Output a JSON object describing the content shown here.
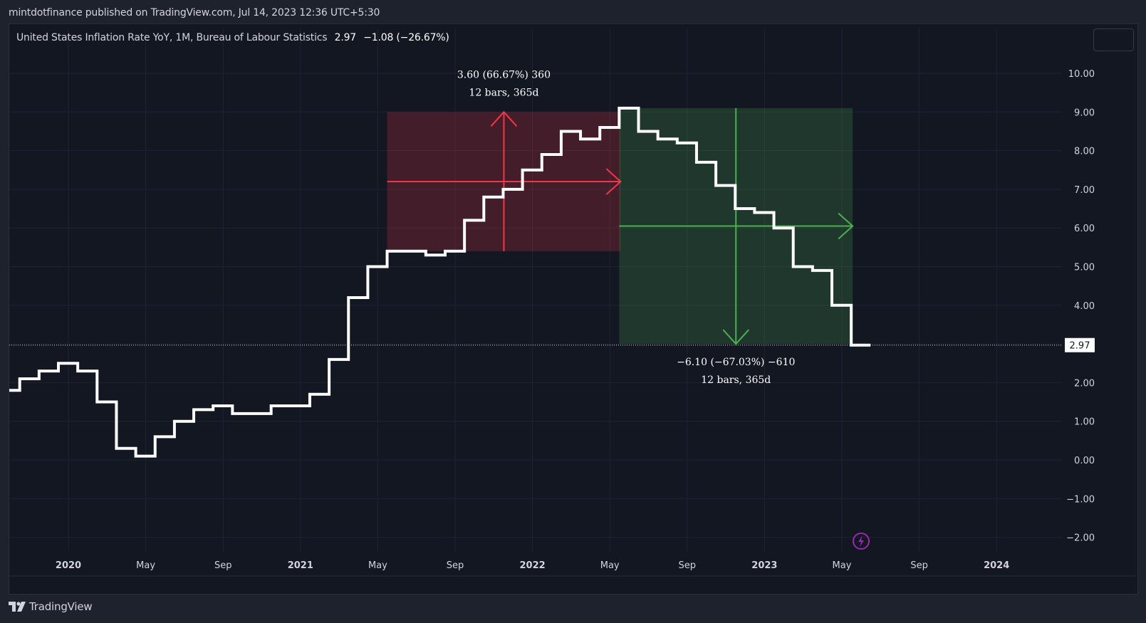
{
  "header": {
    "published_text": "mintdotfinance published on TradingView.com, Jul 14, 2023 12:36 UTC+5:30"
  },
  "legend": {
    "series_name": "United States Inflation Rate YoY, 1M, Bureau of Labour Statistics",
    "last_value": "2.97",
    "change": "−1.08 (−26.67%)"
  },
  "footer": {
    "brand": "TradingView"
  },
  "colors": {
    "background": "#131722",
    "line": "#ffffff",
    "up_measure": "#f23645",
    "down_measure": "#4caf50",
    "snapshot_icon": "#9c27b0"
  },
  "chart_data": {
    "type": "line",
    "step": true,
    "title": "United States Inflation Rate YoY, 1M, Bureau of Labour Statistics",
    "x": [
      "2019-11",
      "2019-12",
      "2020-01",
      "2020-02",
      "2020-03",
      "2020-04",
      "2020-05",
      "2020-06",
      "2020-07",
      "2020-08",
      "2020-09",
      "2020-10",
      "2020-11",
      "2020-12",
      "2021-01",
      "2021-02",
      "2021-03",
      "2021-04",
      "2021-05",
      "2021-06",
      "2021-07",
      "2021-08",
      "2021-09",
      "2021-10",
      "2021-11",
      "2021-12",
      "2022-01",
      "2022-02",
      "2022-03",
      "2022-04",
      "2022-05",
      "2022-06",
      "2022-07",
      "2022-08",
      "2022-09",
      "2022-10",
      "2022-11",
      "2022-12",
      "2023-01",
      "2023-02",
      "2023-03",
      "2023-04",
      "2023-05",
      "2023-06"
    ],
    "values": [
      2.1,
      2.3,
      2.5,
      2.3,
      1.5,
      0.3,
      0.1,
      0.6,
      1.0,
      1.3,
      1.4,
      1.2,
      1.2,
      1.4,
      1.4,
      1.7,
      2.6,
      4.2,
      5.0,
      5.4,
      5.4,
      5.3,
      5.4,
      6.2,
      6.8,
      7.0,
      7.5,
      7.9,
      8.5,
      8.3,
      8.6,
      9.1,
      8.5,
      8.3,
      8.2,
      7.7,
      7.1,
      6.5,
      6.4,
      6.0,
      5.0,
      4.9,
      4.0,
      2.97
    ],
    "first_value": 1.8,
    "ylim": [
      -2.3,
      10.8
    ],
    "y_ticks": [
      "10.00",
      "9.00",
      "8.00",
      "7.00",
      "6.00",
      "5.00",
      "4.00",
      "3.00",
      "2.00",
      "1.00",
      "0.00",
      "−1.00",
      "−2.00"
    ],
    "x_ticks": [
      {
        "label": "2020",
        "major": true,
        "date": "2020-01"
      },
      {
        "label": "May",
        "major": false,
        "date": "2020-05"
      },
      {
        "label": "Sep",
        "major": false,
        "date": "2020-09"
      },
      {
        "label": "2021",
        "major": true,
        "date": "2021-01"
      },
      {
        "label": "May",
        "major": false,
        "date": "2021-05"
      },
      {
        "label": "Sep",
        "major": false,
        "date": "2021-09"
      },
      {
        "label": "2022",
        "major": true,
        "date": "2022-01"
      },
      {
        "label": "May",
        "major": false,
        "date": "2022-05"
      },
      {
        "label": "Sep",
        "major": false,
        "date": "2022-09"
      },
      {
        "label": "2023",
        "major": true,
        "date": "2023-01"
      },
      {
        "label": "May",
        "major": false,
        "date": "2023-05"
      },
      {
        "label": "Sep",
        "major": false,
        "date": "2023-09"
      },
      {
        "label": "2024",
        "major": true,
        "date": "2024-01"
      }
    ],
    "last_price_label": "2.97",
    "measurements": [
      {
        "direction": "up",
        "from_date": "2021-06",
        "to_date": "2022-06",
        "from_value": 5.4,
        "to_value": 9.0,
        "label_line1": "3.60 (66.67%) 360",
        "label_line2": "12 bars, 365d"
      },
      {
        "direction": "down",
        "from_date": "2022-06",
        "to_date": "2023-06",
        "from_value": 9.1,
        "to_value": 3.0,
        "label_line1": "−6.10 (−67.03%) −610",
        "label_line2": "12 bars, 365d"
      }
    ]
  }
}
